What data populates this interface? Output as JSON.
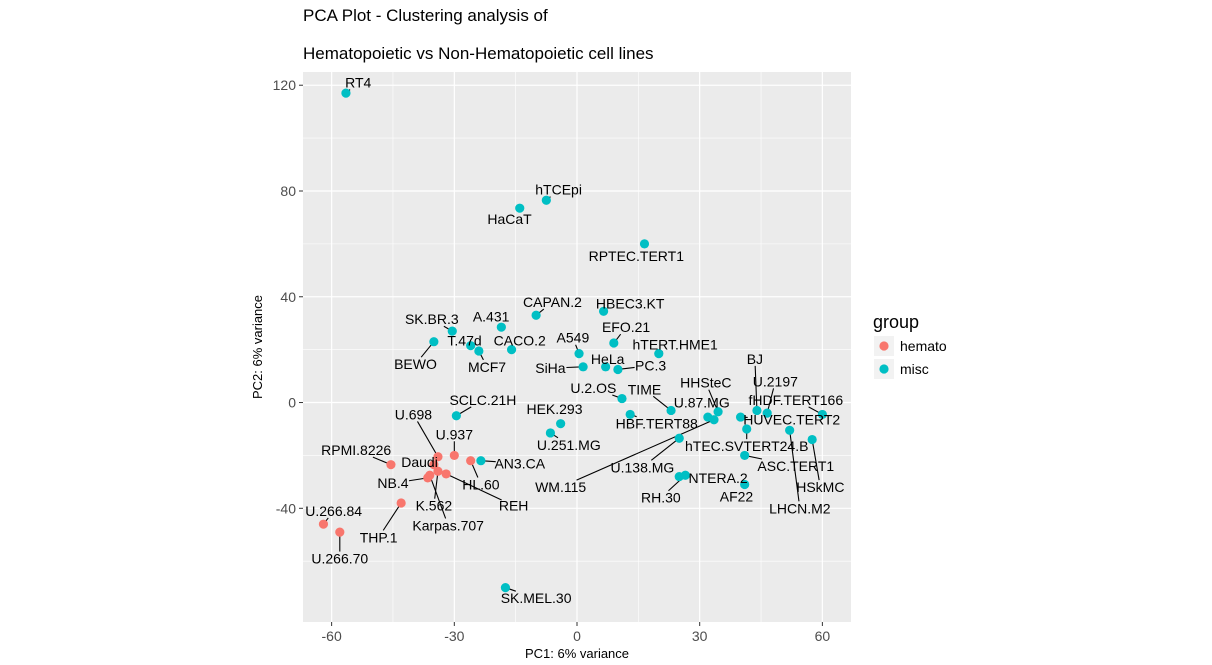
{
  "chart_data": {
    "type": "scatter",
    "title_lines": [
      "PCA Plot - Clustering analysis of",
      "Hematopoietic vs Non-Hematopoietic cell lines"
    ],
    "xlabel": "PC1: 6% variance",
    "ylabel": "PC2: 6% variance",
    "xlim": [
      -67,
      67
    ],
    "ylim": [
      -83,
      125
    ],
    "x_ticks": [
      -60,
      -30,
      0,
      30,
      60
    ],
    "y_ticks": [
      -40,
      0,
      40,
      80,
      120
    ],
    "x_tick_labels": [
      "-60",
      "-30",
      "0",
      "30",
      "60"
    ],
    "y_tick_labels": [
      "-40",
      "0",
      "40",
      "80",
      "120"
    ],
    "grid": true,
    "panel_color": "#ebebeb",
    "legend": {
      "title": "group",
      "placement": "right",
      "entries": [
        {
          "name": "hemato",
          "color": "#F8766D"
        },
        {
          "name": "misc",
          "color": "#00BFC4"
        }
      ]
    },
    "points": [
      {
        "label": "RT4",
        "group": "misc",
        "x": -56.5,
        "y": 117,
        "lx": -53.5,
        "ly": 121
      },
      {
        "label": "hTCEpi",
        "group": "misc",
        "x": -7.5,
        "y": 76.5,
        "lx": -4.5,
        "ly": 80.5
      },
      {
        "label": "HaCaT",
        "group": "misc",
        "x": -14,
        "y": 73.5,
        "lx": -16.5,
        "ly": 69.5
      },
      {
        "label": "RPTEC.TERT1",
        "group": "misc",
        "x": 16.5,
        "y": 60,
        "lx": 14.5,
        "ly": 55.5
      },
      {
        "label": "CAPAN.2",
        "group": "misc",
        "x": -10,
        "y": 33,
        "lx": -6,
        "ly": 38
      },
      {
        "label": "HBEC3.KT",
        "group": "misc",
        "x": 6.5,
        "y": 34.5,
        "lx": 13,
        "ly": 37.5
      },
      {
        "label": "A.431",
        "group": "misc",
        "x": -18.5,
        "y": 28.5,
        "lx": -21,
        "ly": 32.5
      },
      {
        "label": "SK.BR.3",
        "group": "misc",
        "x": -30.5,
        "y": 27,
        "lx": -35.5,
        "ly": 31.5
      },
      {
        "label": "EFO.21",
        "group": "misc",
        "x": 9,
        "y": 22.5,
        "lx": 12,
        "ly": 28.5
      },
      {
        "label": "T.47d",
        "group": "misc",
        "x": -26,
        "y": 21.5,
        "lx": -27.5,
        "ly": 23.5
      },
      {
        "label": "CACO.2",
        "group": "misc",
        "x": -16,
        "y": 20,
        "lx": -14,
        "ly": 23.5
      },
      {
        "label": "BEWO",
        "group": "misc",
        "x": -35,
        "y": 23,
        "lx": -39.5,
        "ly": 14.5
      },
      {
        "label": "MCF7",
        "group": "misc",
        "x": -24,
        "y": 19.5,
        "lx": -22,
        "ly": 13.5
      },
      {
        "label": "A549",
        "group": "misc",
        "x": 0.5,
        "y": 18.5,
        "lx": -1,
        "ly": 24.5
      },
      {
        "label": "hTERT.HME1",
        "group": "misc",
        "x": 20,
        "y": 18.5,
        "lx": 24,
        "ly": 22
      },
      {
        "label": "HeLa",
        "group": "misc",
        "x": 7,
        "y": 13.5,
        "lx": 7.5,
        "ly": 16.5
      },
      {
        "label": "SiHa",
        "group": "misc",
        "x": 1.5,
        "y": 13.5,
        "lx": -6.5,
        "ly": 13
      },
      {
        "label": "PC.3",
        "group": "misc",
        "x": 10,
        "y": 12.5,
        "lx": 18,
        "ly": 14
      },
      {
        "label": "U.2.OS",
        "group": "misc",
        "x": 11,
        "y": 1.5,
        "lx": 4,
        "ly": 5.5
      },
      {
        "label": "TIME",
        "group": "misc",
        "x": 23,
        "y": -3,
        "lx": 16.5,
        "ly": 5
      },
      {
        "label": "HHSteC",
        "group": "misc",
        "x": 34.5,
        "y": -3.5,
        "lx": 31.5,
        "ly": 7.5
      },
      {
        "label": "BJ",
        "group": "misc",
        "x": 44,
        "y": -3,
        "lx": 43.5,
        "ly": 16.5
      },
      {
        "label": "U.2197",
        "group": "misc",
        "x": 46.5,
        "y": -4,
        "lx": 48.5,
        "ly": 8
      },
      {
        "label": "U.87.MG",
        "group": "misc",
        "x": 32,
        "y": -5.5,
        "lx": 30.5,
        "ly": 0
      },
      {
        "label": "fHDF.TERT166",
        "group": "misc",
        "x": 60,
        "y": -4.5,
        "lx": 53.5,
        "ly": 1
      },
      {
        "label": "HUVEC.TERT2",
        "group": "misc",
        "x": 40,
        "y": -5.5,
        "lx": 52.5,
        "ly": -6.5
      },
      {
        "label": "HBF.TERT88",
        "group": "misc",
        "x": 13,
        "y": -4.5,
        "lx": 19.5,
        "ly": -8
      },
      {
        "label": "HEK.293",
        "group": "misc",
        "x": -4,
        "y": -8,
        "lx": -5.5,
        "ly": -2.5
      },
      {
        "label": "SCLC.21H",
        "group": "misc",
        "x": -29.5,
        "y": -5,
        "lx": -23,
        "ly": 1
      },
      {
        "label": "U.251.MG",
        "group": "misc",
        "x": -6.5,
        "y": -11.5,
        "lx": -2,
        "ly": -16
      },
      {
        "label": "hTEC.SVTERT24.B",
        "group": "misc",
        "x": 41.5,
        "y": -10,
        "lx": 41.5,
        "ly": -16.5
      },
      {
        "label": "HSkMC",
        "group": "misc",
        "x": 57.5,
        "y": -14,
        "lx": 59.5,
        "ly": -32
      },
      {
        "label": "LHCN.M2",
        "group": "misc",
        "x": 52,
        "y": -10.5,
        "lx": 54.5,
        "ly": -40
      },
      {
        "label": "U.138.MG",
        "group": "misc",
        "x": 25,
        "y": -13.5,
        "lx": 16,
        "ly": -24.5
      },
      {
        "label": "AN3.CA",
        "group": "misc",
        "x": -23.5,
        "y": -22,
        "lx": -14,
        "ly": -23
      },
      {
        "label": "ASC.TERT1",
        "group": "misc",
        "x": 41,
        "y": -20,
        "lx": 53.5,
        "ly": -24
      },
      {
        "label": "NTERA.2",
        "group": "misc",
        "x": 25,
        "y": -28,
        "lx": 34.5,
        "ly": -28.5
      },
      {
        "label": "WM.115",
        "group": "misc",
        "x": 33.5,
        "y": -6.5,
        "lx": -4,
        "ly": -32
      },
      {
        "label": "RH.30",
        "group": "misc",
        "x": 26.5,
        "y": -27.5,
        "lx": 20.5,
        "ly": -36
      },
      {
        "label": "AF22",
        "group": "misc",
        "x": 41,
        "y": -31,
        "lx": 39,
        "ly": -35.5
      },
      {
        "label": "SK.MEL.30",
        "group": "misc",
        "x": -17.5,
        "y": -70,
        "lx": -10,
        "ly": -74
      },
      {
        "label": "U.698",
        "group": "hemato",
        "x": -34,
        "y": -20.5,
        "lx": -40,
        "ly": -4.5
      },
      {
        "label": "U.937",
        "group": "hemato",
        "x": -30,
        "y": -20,
        "lx": -30,
        "ly": -12
      },
      {
        "label": "RPMI.8226",
        "group": "hemato",
        "x": -45.5,
        "y": -23.5,
        "lx": -54,
        "ly": -18
      },
      {
        "label": "Daudi",
        "group": "hemato",
        "x": -35,
        "y": -23.5,
        "lx": -38.5,
        "ly": -22.5
      },
      {
        "label": "HL.60",
        "group": "hemato",
        "x": -26,
        "y": -22,
        "lx": -23.5,
        "ly": -31
      },
      {
        "label": "NB.4",
        "group": "hemato",
        "x": -36.5,
        "y": -28.5,
        "lx": -45,
        "ly": -30.5
      },
      {
        "label": "K.562",
        "group": "hemato",
        "x": -34,
        "y": -26,
        "lx": -35,
        "ly": -39
      },
      {
        "label": "REH",
        "group": "hemato",
        "x": -32,
        "y": -27,
        "lx": -15.5,
        "ly": -39
      },
      {
        "label": "Karpas.707",
        "group": "hemato",
        "x": -36,
        "y": -27.5,
        "lx": -31.5,
        "ly": -46.5
      },
      {
        "label": "THP.1",
        "group": "hemato",
        "x": -43,
        "y": -38,
        "lx": -48.5,
        "ly": -51
      },
      {
        "label": "U.266.84",
        "group": "hemato",
        "x": -62,
        "y": -46,
        "lx": -59.5,
        "ly": -41
      },
      {
        "label": "U.266.70",
        "group": "hemato",
        "x": -58,
        "y": -49,
        "lx": -58,
        "ly": -59
      }
    ]
  }
}
